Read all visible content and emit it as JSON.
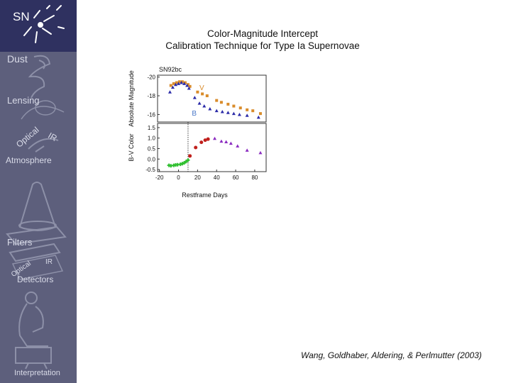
{
  "sidebar": {
    "items": [
      {
        "label": "SN"
      },
      {
        "label": "Dust"
      },
      {
        "label": "Lensing"
      },
      {
        "label": "Optical"
      },
      {
        "label": "IR"
      },
      {
        "label": "Atmosphere"
      },
      {
        "label": "Filters"
      },
      {
        "label": "Optical"
      },
      {
        "label": "IR"
      },
      {
        "label": "Detectors"
      },
      {
        "label": "Interpretation"
      }
    ]
  },
  "slide": {
    "title_line1": "Color-Magnitude Intercept",
    "title_line2": "Calibration Technique for Type Ia Supernovae",
    "citation": "Wang, Goldhaber, Aldering, & Perlmutter (2003)"
  },
  "chart_data": [
    {
      "type": "scatter",
      "title": "SN92bc",
      "xlabel": "",
      "ylabel": "Absolute Magnitude",
      "ylim": [
        -15.2,
        -20.2
      ],
      "xlim": [
        -22,
        92
      ],
      "yticks": [
        "-20",
        "-18",
        "-16"
      ],
      "series": [
        {
          "name": "V",
          "color": "#d98c2b",
          "points": [
            [
              -8,
              -19.1
            ],
            [
              -5,
              -19.3
            ],
            [
              -2,
              -19.4
            ],
            [
              1,
              -19.5
            ],
            [
              4,
              -19.5
            ],
            [
              7,
              -19.4
            ],
            [
              10,
              -19.2
            ],
            [
              12,
              -19.0
            ],
            [
              20,
              -18.4
            ],
            [
              25,
              -18.2
            ],
            [
              30,
              -18.0
            ],
            [
              40,
              -17.5
            ],
            [
              45,
              -17.3
            ],
            [
              52,
              -17.1
            ],
            [
              58,
              -16.9
            ],
            [
              65,
              -16.7
            ],
            [
              72,
              -16.5
            ],
            [
              78,
              -16.4
            ],
            [
              86,
              -16.1
            ]
          ]
        },
        {
          "name": "B",
          "color": "#2a2aa8",
          "points": [
            [
              -9,
              -18.4
            ],
            [
              -6,
              -18.9
            ],
            [
              -3,
              -19.2
            ],
            [
              0,
              -19.3
            ],
            [
              3,
              -19.4
            ],
            [
              6,
              -19.3
            ],
            [
              9,
              -19.1
            ],
            [
              11,
              -18.8
            ],
            [
              17,
              -17.8
            ],
            [
              22,
              -17.2
            ],
            [
              27,
              -16.9
            ],
            [
              33,
              -16.6
            ],
            [
              40,
              -16.4
            ],
            [
              46,
              -16.3
            ],
            [
              52,
              -16.2
            ],
            [
              58,
              -16.1
            ],
            [
              64,
              -16.0
            ],
            [
              72,
              -15.9
            ],
            [
              84,
              -15.7
            ]
          ]
        }
      ]
    },
    {
      "type": "scatter",
      "title": "",
      "xlabel": "Restframe Days",
      "ylabel": "B-V Color",
      "ylim": [
        -0.6,
        1.7
      ],
      "xlim": [
        -22,
        92
      ],
      "xticks": [
        "-20",
        "0",
        "20",
        "40",
        "60",
        "80"
      ],
      "yticks": [
        "1.5",
        "1.0",
        "0.5",
        "0.0",
        "-0.5"
      ],
      "series": [
        {
          "name": "",
          "color": "#2fbf2f",
          "points": [
            [
              -10,
              -0.3
            ],
            [
              -8,
              -0.32
            ],
            [
              -5,
              -0.3
            ],
            [
              -3,
              -0.28
            ],
            [
              -1,
              -0.27
            ],
            [
              2,
              -0.25
            ],
            [
              4,
              -0.22
            ],
            [
              6,
              -0.18
            ],
            [
              8,
              -0.12
            ],
            [
              10,
              -0.05
            ]
          ]
        },
        {
          "name": "",
          "color": "#c0201c",
          "points": [
            [
              12,
              0.15
            ],
            [
              18,
              0.55
            ],
            [
              24,
              0.8
            ],
            [
              28,
              0.9
            ],
            [
              31,
              0.95
            ]
          ]
        },
        {
          "name": "",
          "color": "#8a2bc0",
          "points": [
            [
              38,
              0.98
            ],
            [
              45,
              0.85
            ],
            [
              50,
              0.82
            ],
            [
              55,
              0.75
            ],
            [
              62,
              0.62
            ],
            [
              72,
              0.42
            ],
            [
              86,
              0.3
            ]
          ]
        }
      ],
      "annotations": [
        {
          "type": "vertical-dotted-line",
          "x": 10
        }
      ]
    }
  ]
}
